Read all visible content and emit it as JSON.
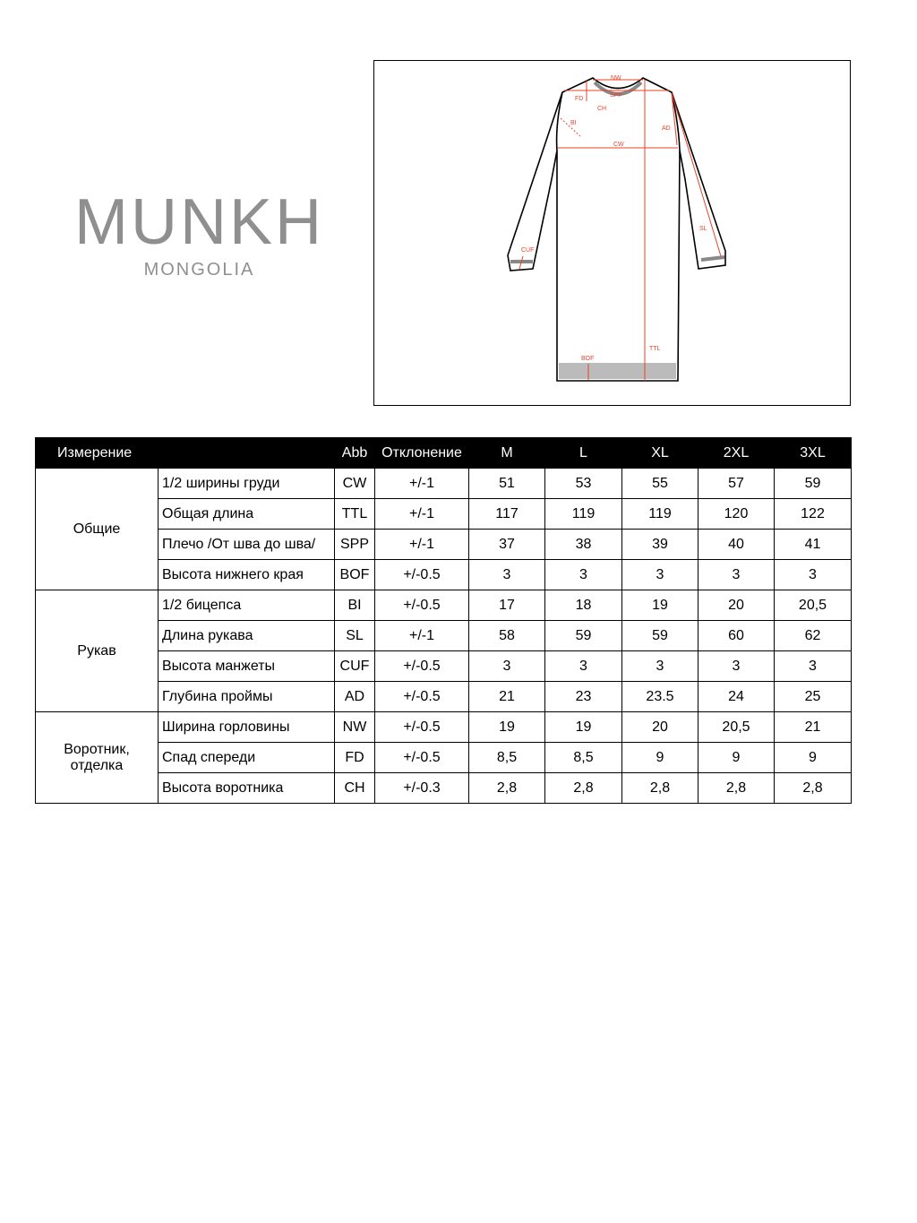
{
  "logo": {
    "brand": "MUNKH",
    "sub": "MONGOLIA"
  },
  "diagram": {
    "labels": {
      "nw": "NW",
      "spp": "SPP",
      "fd": "FD",
      "ch": "CH",
      "bi": "BI",
      "cw": "CW",
      "ad": "AD",
      "sl": "SL",
      "cuf": "CUF",
      "bof": "BOF",
      "ttl": "TTL"
    },
    "accent_color": "#e8432a"
  },
  "table": {
    "headers": {
      "measure": "Измерение",
      "abb": "Abb",
      "tolerance": "Отклонение",
      "sizes": [
        "M",
        "L",
        "XL",
        "2XL",
        "3XL"
      ]
    },
    "groups": [
      {
        "name": "Общие",
        "rows": [
          {
            "name": "1/2 ширины груди",
            "abb": "CW",
            "tol": "+/-1",
            "values": [
              "51",
              "53",
              "55",
              "57",
              "59"
            ]
          },
          {
            "name": "Общая длина",
            "abb": "TTL",
            "tol": "+/-1",
            "values": [
              "117",
              "119",
              "119",
              "120",
              "122"
            ]
          },
          {
            "name": "Плечо /От шва до шва/",
            "abb": "SPP",
            "tol": "+/-1",
            "values": [
              "37",
              "38",
              "39",
              "40",
              "41"
            ]
          },
          {
            "name": "Высота нижнего края",
            "abb": "BOF",
            "tol": "+/-0.5",
            "values": [
              "3",
              "3",
              "3",
              "3",
              "3"
            ]
          }
        ]
      },
      {
        "name": "Рукав",
        "rows": [
          {
            "name": "1/2 бицепса",
            "abb": "BI",
            "tol": "+/-0.5",
            "values": [
              "17",
              "18",
              "19",
              "20",
              "20,5"
            ]
          },
          {
            "name": "Длина рукава",
            "abb": "SL",
            "tol": "+/-1",
            "values": [
              "58",
              "59",
              "59",
              "60",
              "62"
            ]
          },
          {
            "name": "Высота манжеты",
            "abb": "CUF",
            "tol": "+/-0.5",
            "values": [
              "3",
              "3",
              "3",
              "3",
              "3"
            ]
          },
          {
            "name": "Глубина проймы",
            "abb": "AD",
            "tol": "+/-0.5",
            "values": [
              "21",
              "23",
              "23.5",
              "24",
              "25"
            ]
          }
        ]
      },
      {
        "name": "Воротник, отделка",
        "rows": [
          {
            "name": "Ширина горловины",
            "abb": "NW",
            "tol": "+/-0.5",
            "values": [
              "19",
              "19",
              "20",
              "20,5",
              "21"
            ]
          },
          {
            "name": "Спад спереди",
            "abb": "FD",
            "tol": "+/-0.5",
            "values": [
              "8,5",
              "8,5",
              "9",
              "9",
              "9"
            ]
          },
          {
            "name": "Высота воротника",
            "abb": "CH",
            "tol": "+/-0.3",
            "values": [
              "2,8",
              "2,8",
              "2,8",
              "2,8",
              "2,8"
            ]
          }
        ]
      }
    ]
  }
}
